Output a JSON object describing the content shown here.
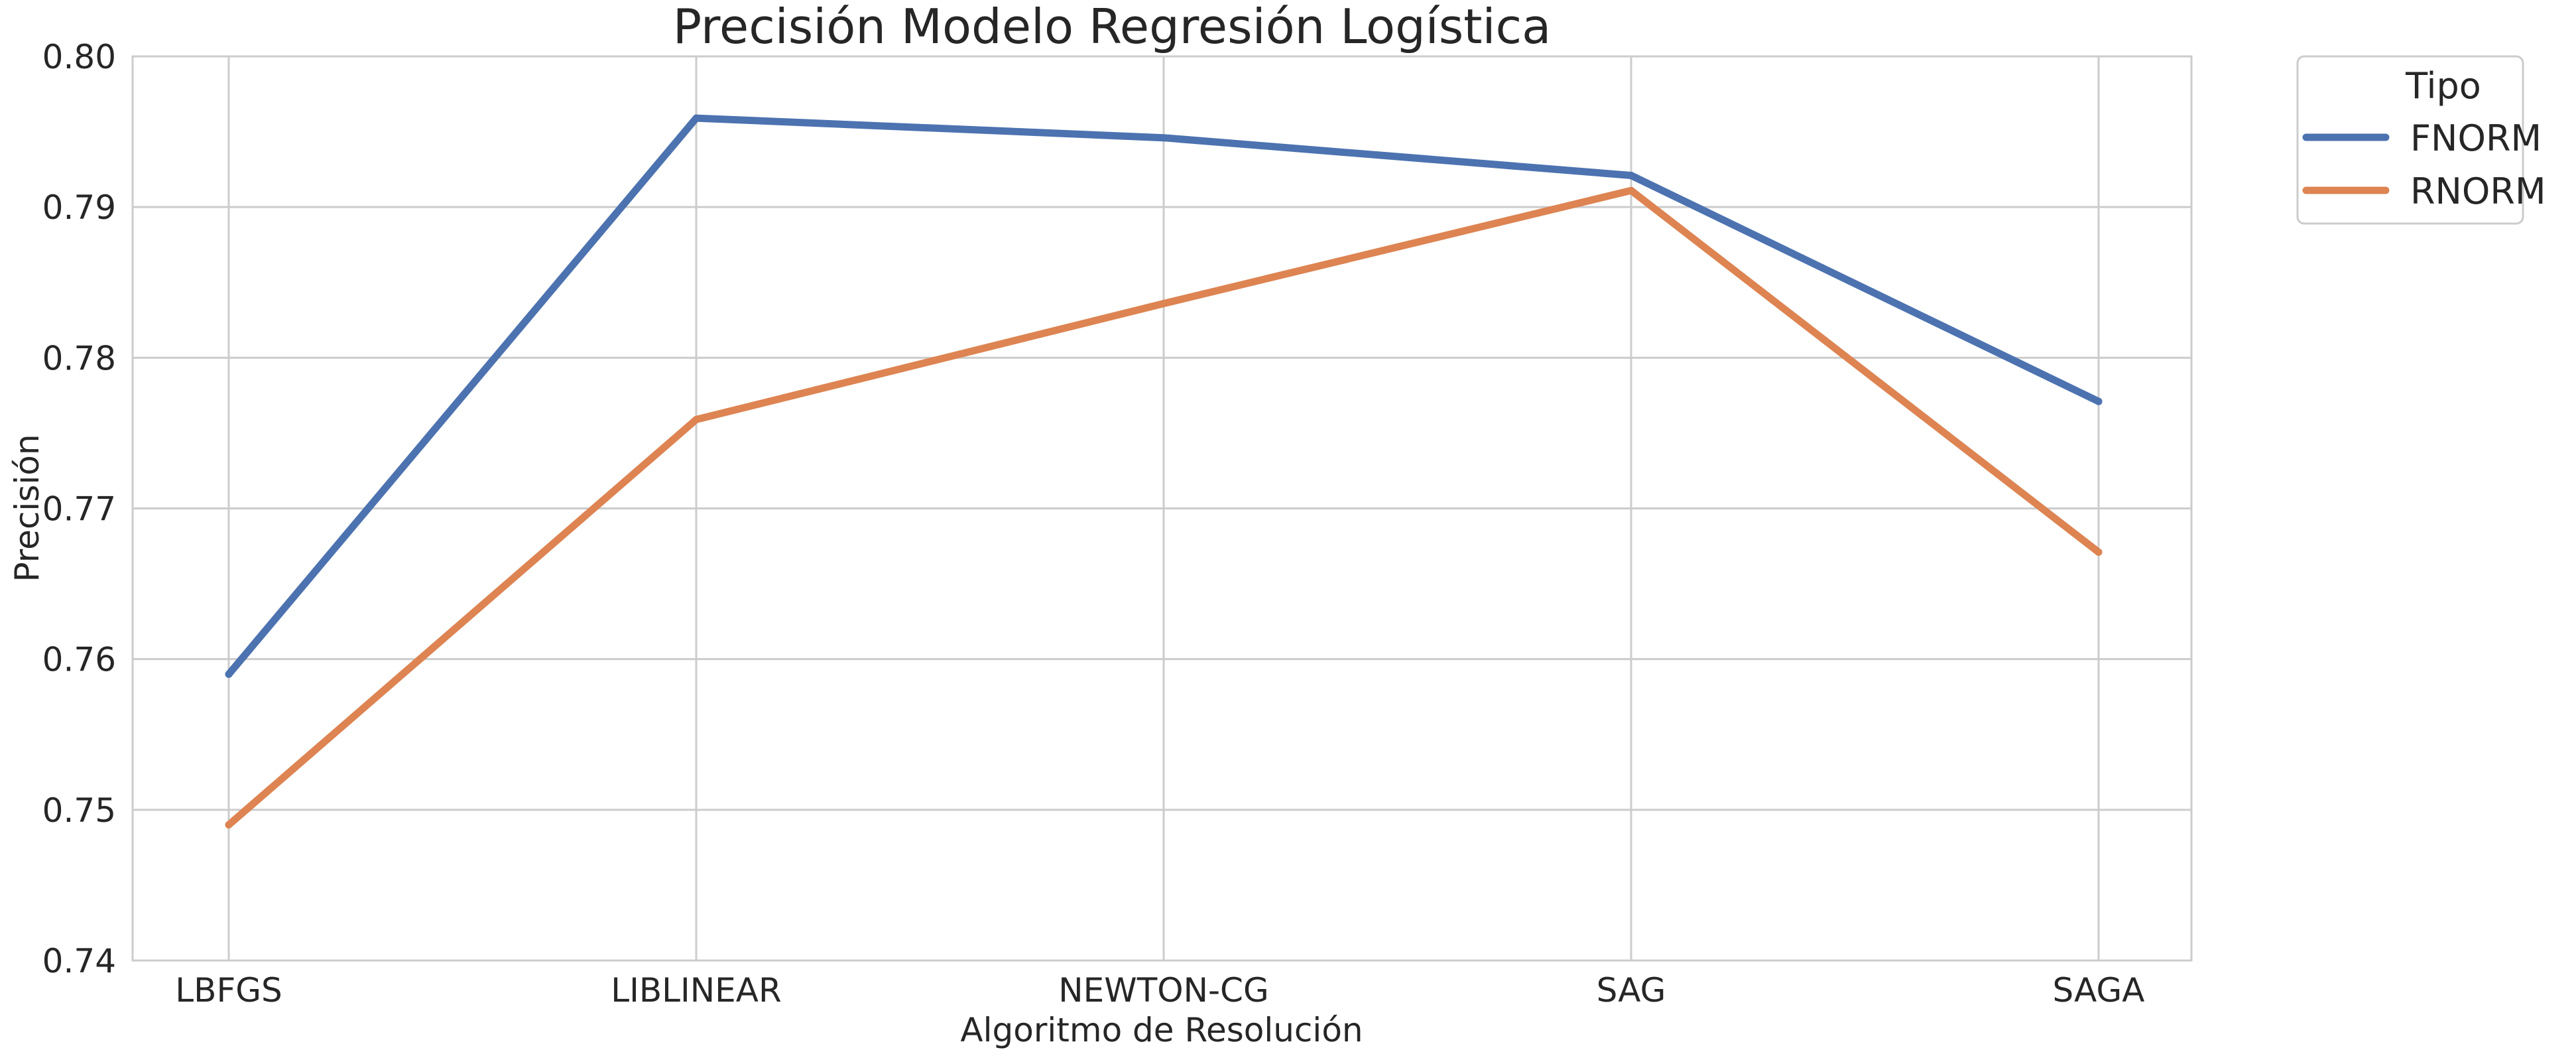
{
  "chart_data": {
    "type": "line",
    "title": "Precisión Modelo Regresión Logística",
    "xlabel": "Algoritmo de Resolución",
    "ylabel": "Precisión",
    "categories": [
      "LBFGS",
      "LIBLINEAR",
      "NEWTON-CG",
      "SAG",
      "SAGA"
    ],
    "ylim": [
      0.74,
      0.8
    ],
    "yticks": [
      "0.74",
      "0.75",
      "0.76",
      "0.77",
      "0.78",
      "0.79",
      "0.80"
    ],
    "grid": true,
    "legend": {
      "title": "Tipo",
      "placement": "outside-top-right"
    },
    "series": [
      {
        "name": "FNORM",
        "color": "#4c72b0",
        "values": [
          0.759,
          0.7959,
          0.7946,
          0.7921,
          0.7771
        ]
      },
      {
        "name": "RNORM",
        "color": "#dd8452",
        "values": [
          0.749,
          0.7759,
          0.7836,
          0.7911,
          0.7671
        ]
      }
    ]
  }
}
